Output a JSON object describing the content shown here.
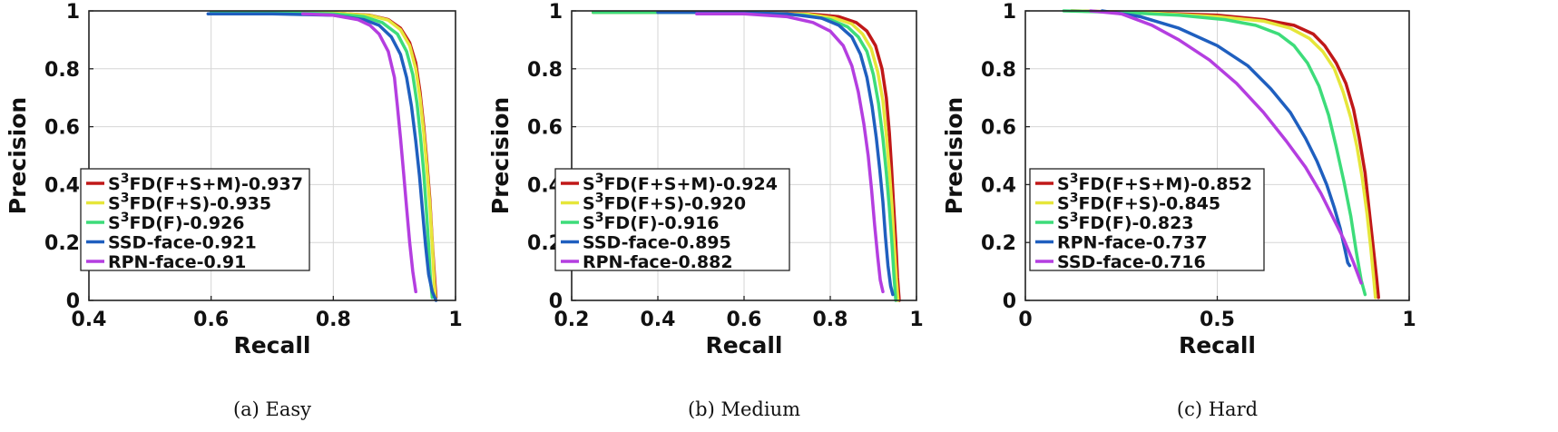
{
  "chart_data": [
    {
      "type": "line",
      "caption": "(a)  Easy",
      "xlabel": "Recall",
      "ylabel": "Precision",
      "xlim": [
        0.4,
        1
      ],
      "ylim": [
        0,
        1
      ],
      "xticks": [
        "0.4",
        "0.6",
        "0.8",
        "1"
      ],
      "yticks": [
        "0",
        "0.2",
        "0.4",
        "0.6",
        "0.8",
        "1"
      ],
      "grid": true,
      "legend_position": "lower-left",
      "series": [
        {
          "name": "S³FD(F+S+M)-0.937",
          "legend_base": "S",
          "legend_sup": "3",
          "legend_rest": "FD(F+S+M)-0.937",
          "color": "#c01818",
          "x": [
            0.6,
            0.7,
            0.8,
            0.86,
            0.89,
            0.91,
            0.925,
            0.935,
            0.942,
            0.948,
            0.953,
            0.958,
            0.962,
            0.966,
            0.968
          ],
          "y": [
            0.995,
            0.995,
            0.993,
            0.985,
            0.97,
            0.94,
            0.89,
            0.82,
            0.72,
            0.6,
            0.48,
            0.35,
            0.2,
            0.07,
            0.01
          ]
        },
        {
          "name": "S³FD(F+S)-0.935",
          "legend_base": "S",
          "legend_sup": "3",
          "legend_rest": "FD(F+S)-0.935",
          "color": "#e6e63a",
          "x": [
            0.6,
            0.7,
            0.8,
            0.86,
            0.89,
            0.91,
            0.925,
            0.935,
            0.942,
            0.948,
            0.953,
            0.958,
            0.962,
            0.965,
            0.967
          ],
          "y": [
            0.995,
            0.995,
            0.993,
            0.984,
            0.968,
            0.935,
            0.88,
            0.8,
            0.7,
            0.58,
            0.46,
            0.33,
            0.19,
            0.07,
            0.01
          ]
        },
        {
          "name": "S³FD(F)-0.926",
          "legend_base": "S",
          "legend_sup": "3",
          "legend_rest": "FD(F)-0.926",
          "color": "#3ddc7a",
          "x": [
            0.6,
            0.7,
            0.8,
            0.85,
            0.88,
            0.905,
            0.92,
            0.93,
            0.937,
            0.943,
            0.948,
            0.952,
            0.956,
            0.959,
            0.962
          ],
          "y": [
            0.995,
            0.995,
            0.99,
            0.98,
            0.96,
            0.92,
            0.86,
            0.78,
            0.68,
            0.56,
            0.44,
            0.32,
            0.19,
            0.07,
            0.01
          ]
        },
        {
          "name": "SSD-face-0.921",
          "legend_base": "SSD-face-0.921",
          "legend_sup": "",
          "legend_rest": "",
          "color": "#1f5fbf",
          "x": [
            0.595,
            0.7,
            0.8,
            0.85,
            0.875,
            0.895,
            0.91,
            0.92,
            0.928,
            0.935,
            0.941,
            0.946,
            0.951,
            0.956,
            0.962,
            0.968
          ],
          "y": [
            0.99,
            0.99,
            0.985,
            0.97,
            0.95,
            0.91,
            0.85,
            0.77,
            0.67,
            0.55,
            0.43,
            0.31,
            0.19,
            0.09,
            0.03,
            0.0
          ]
        },
        {
          "name": "RPN-face-0.91",
          "legend_base": "RPN-face-0.91",
          "legend_sup": "",
          "legend_rest": "",
          "color": "#b43ee0",
          "x": [
            0.75,
            0.8,
            0.84,
            0.86,
            0.875,
            0.89,
            0.9,
            0.905,
            0.91,
            0.915,
            0.92,
            0.925,
            0.93,
            0.935
          ],
          "y": [
            0.99,
            0.985,
            0.97,
            0.95,
            0.92,
            0.86,
            0.77,
            0.67,
            0.56,
            0.44,
            0.32,
            0.2,
            0.1,
            0.03
          ]
        }
      ]
    },
    {
      "type": "line",
      "caption": "(b)  Medium",
      "xlabel": "Recall",
      "ylabel": "Precision",
      "xlim": [
        0.2,
        1
      ],
      "ylim": [
        0,
        1
      ],
      "xticks": [
        "0.2",
        "0.4",
        "0.6",
        "0.8",
        "1"
      ],
      "yticks": [
        "0",
        "0.2",
        "0.4",
        "0.6",
        "0.8",
        "1"
      ],
      "grid": true,
      "legend_position": "lower-left",
      "series": [
        {
          "name": "S³FD(F+S+M)-0.924",
          "legend_base": "S",
          "legend_sup": "3",
          "legend_rest": "FD(F+S+M)-0.924",
          "color": "#c01818",
          "x": [
            0.25,
            0.4,
            0.6,
            0.75,
            0.82,
            0.86,
            0.885,
            0.905,
            0.92,
            0.93,
            0.937,
            0.942,
            0.947,
            0.952,
            0.956,
            0.96
          ],
          "y": [
            0.995,
            0.995,
            0.995,
            0.99,
            0.98,
            0.96,
            0.93,
            0.88,
            0.8,
            0.7,
            0.58,
            0.46,
            0.33,
            0.2,
            0.08,
            0.0
          ]
        },
        {
          "name": "S³FD(F+S)-0.920",
          "legend_base": "S",
          "legend_sup": "3",
          "legend_rest": "FD(F+S)-0.920",
          "color": "#e6e63a",
          "x": [
            0.25,
            0.4,
            0.6,
            0.75,
            0.81,
            0.85,
            0.875,
            0.895,
            0.91,
            0.922,
            0.93,
            0.937,
            0.943,
            0.948,
            0.953,
            0.957
          ],
          "y": [
            0.995,
            0.995,
            0.995,
            0.988,
            0.975,
            0.955,
            0.92,
            0.87,
            0.79,
            0.69,
            0.57,
            0.45,
            0.33,
            0.2,
            0.08,
            0.0
          ]
        },
        {
          "name": "S³FD(F)-0.916",
          "legend_base": "S",
          "legend_sup": "3",
          "legend_rest": "FD(F)-0.916",
          "color": "#3ddc7a",
          "x": [
            0.25,
            0.4,
            0.6,
            0.74,
            0.8,
            0.84,
            0.865,
            0.885,
            0.9,
            0.912,
            0.922,
            0.93,
            0.937,
            0.943,
            0.948,
            0.952
          ],
          "y": [
            0.995,
            0.995,
            0.995,
            0.985,
            0.97,
            0.945,
            0.91,
            0.86,
            0.78,
            0.68,
            0.56,
            0.44,
            0.32,
            0.2,
            0.08,
            0.0
          ]
        },
        {
          "name": "SSD-face-0.895",
          "legend_base": "SSD-face-0.895",
          "legend_sup": "",
          "legend_rest": "",
          "color": "#1f5fbf",
          "x": [
            0.4,
            0.55,
            0.7,
            0.78,
            0.82,
            0.85,
            0.87,
            0.885,
            0.897,
            0.907,
            0.915,
            0.922,
            0.928,
            0.934,
            0.94,
            0.945
          ],
          "y": [
            0.995,
            0.995,
            0.99,
            0.975,
            0.95,
            0.91,
            0.85,
            0.77,
            0.67,
            0.56,
            0.45,
            0.34,
            0.22,
            0.12,
            0.05,
            0.02
          ]
        },
        {
          "name": "RPN-face-0.882",
          "legend_base": "RPN-face-0.882",
          "legend_sup": "",
          "legend_rest": "",
          "color": "#b43ee0",
          "x": [
            0.49,
            0.6,
            0.7,
            0.76,
            0.8,
            0.83,
            0.85,
            0.865,
            0.878,
            0.888,
            0.896,
            0.903,
            0.91,
            0.916,
            0.922
          ],
          "y": [
            0.99,
            0.99,
            0.98,
            0.96,
            0.93,
            0.88,
            0.81,
            0.72,
            0.61,
            0.5,
            0.38,
            0.26,
            0.15,
            0.07,
            0.03
          ]
        }
      ]
    },
    {
      "type": "line",
      "caption": "(c)  Hard",
      "xlabel": "Recall",
      "ylabel": "Precision",
      "xlim": [
        0,
        1
      ],
      "ylim": [
        0,
        1
      ],
      "xticks": [
        "0",
        "0.5",
        "1"
      ],
      "yticks": [
        "0",
        "0.2",
        "0.4",
        "0.6",
        "0.8",
        "1"
      ],
      "grid": true,
      "legend_position": "lower-left",
      "series": [
        {
          "name": "S³FD(F+S+M)-0.852",
          "legend_base": "S",
          "legend_sup": "3",
          "legend_rest": "FD(F+S+M)-0.852",
          "color": "#c01818",
          "x": [
            0.12,
            0.3,
            0.5,
            0.62,
            0.7,
            0.75,
            0.78,
            0.81,
            0.835,
            0.855,
            0.87,
            0.885,
            0.895,
            0.905,
            0.915,
            0.92
          ],
          "y": [
            1.0,
            0.995,
            0.985,
            0.97,
            0.95,
            0.92,
            0.88,
            0.82,
            0.75,
            0.66,
            0.56,
            0.44,
            0.32,
            0.2,
            0.08,
            0.01
          ]
        },
        {
          "name": "S³FD(F+S)-0.845",
          "legend_base": "S",
          "legend_sup": "3",
          "legend_rest": "FD(F+S)-0.845",
          "color": "#e6e63a",
          "x": [
            0.12,
            0.3,
            0.5,
            0.62,
            0.69,
            0.74,
            0.775,
            0.805,
            0.828,
            0.848,
            0.864,
            0.878,
            0.89,
            0.9,
            0.908,
            0.912
          ],
          "y": [
            1.0,
            0.995,
            0.98,
            0.965,
            0.94,
            0.905,
            0.86,
            0.8,
            0.72,
            0.63,
            0.53,
            0.42,
            0.3,
            0.18,
            0.07,
            0.01
          ]
        },
        {
          "name": "S³FD(F)-0.823",
          "legend_base": "S",
          "legend_sup": "3",
          "legend_rest": "FD(F)-0.823",
          "color": "#3ddc7a",
          "x": [
            0.1,
            0.25,
            0.4,
            0.52,
            0.6,
            0.66,
            0.7,
            0.735,
            0.765,
            0.79,
            0.81,
            0.83,
            0.848,
            0.862,
            0.875,
            0.885
          ],
          "y": [
            1.0,
            0.995,
            0.985,
            0.97,
            0.95,
            0.92,
            0.88,
            0.82,
            0.74,
            0.64,
            0.53,
            0.41,
            0.29,
            0.17,
            0.07,
            0.02
          ]
        },
        {
          "name": "RPN-face-0.737",
          "legend_base": "RPN-face-0.737",
          "legend_sup": "",
          "legend_rest": "",
          "color": "#1f5fbf",
          "x": [
            0.2,
            0.3,
            0.4,
            0.5,
            0.58,
            0.64,
            0.69,
            0.73,
            0.76,
            0.785,
            0.805,
            0.82,
            0.832,
            0.84,
            0.845
          ],
          "y": [
            1.0,
            0.98,
            0.94,
            0.88,
            0.81,
            0.73,
            0.65,
            0.56,
            0.48,
            0.4,
            0.32,
            0.25,
            0.18,
            0.13,
            0.12
          ]
        },
        {
          "name": "SSD-face-0.716",
          "legend_base": "SSD-face-0.716",
          "legend_sup": "",
          "legend_rest": "",
          "color": "#b43ee0",
          "x": [
            0.17,
            0.25,
            0.33,
            0.4,
            0.48,
            0.55,
            0.62,
            0.68,
            0.73,
            0.77,
            0.8,
            0.83,
            0.855,
            0.875
          ],
          "y": [
            1.0,
            0.99,
            0.95,
            0.9,
            0.83,
            0.75,
            0.65,
            0.55,
            0.46,
            0.37,
            0.29,
            0.21,
            0.13,
            0.06
          ]
        }
      ]
    }
  ]
}
